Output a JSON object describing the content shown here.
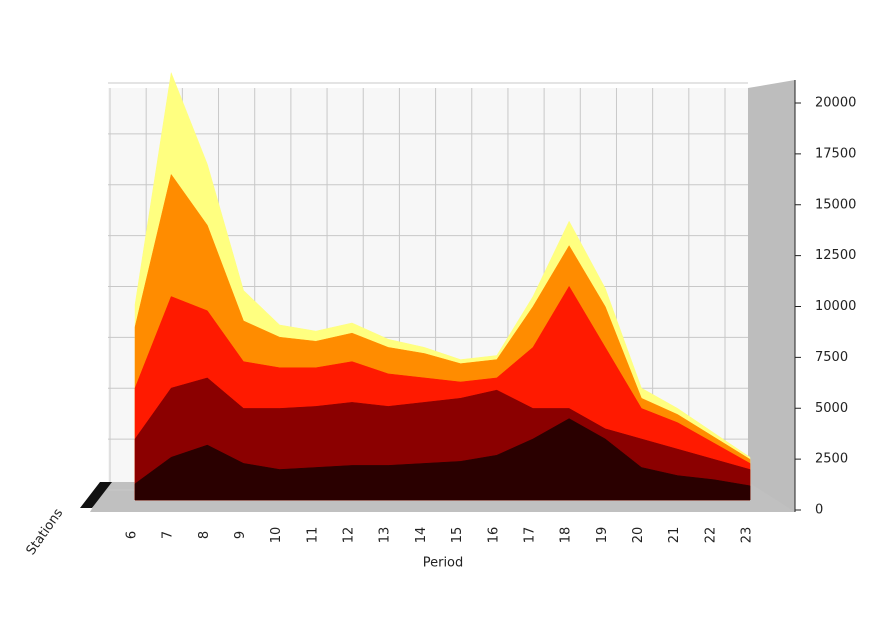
{
  "chart_data": {
    "type": "surface",
    "x_label": "Period",
    "y_label": "Stations",
    "categories": [
      "6",
      "7",
      "8",
      "9",
      "10",
      "11",
      "12",
      "13",
      "14",
      "15",
      "16",
      "17",
      "18",
      "19",
      "20",
      "21",
      "22",
      "23"
    ],
    "series": [
      {
        "color": "#ffff80",
        "values": [
          9600,
          21000,
          16500,
          10300,
          8600,
          8300,
          8700,
          7900,
          7500,
          6900,
          7100,
          10000,
          13700,
          10400,
          5500,
          4500,
          3300,
          2100
        ]
      },
      {
        "color": "#ff8c00",
        "values": [
          8500,
          16000,
          13500,
          8800,
          8000,
          7800,
          8200,
          7500,
          7200,
          6700,
          6900,
          9500,
          12500,
          9500,
          5000,
          4200,
          3100,
          2000
        ]
      },
      {
        "color": "#ff1a00",
        "values": [
          5500,
          10000,
          9300,
          6800,
          6500,
          6500,
          6800,
          6200,
          6000,
          5800,
          6000,
          7500,
          10500,
          7500,
          4500,
          3800,
          2800,
          1800
        ]
      },
      {
        "color": "#8b0000",
        "values": [
          3000,
          5500,
          6000,
          4500,
          4500,
          4600,
          4800,
          4600,
          4800,
          5000,
          5400,
          4500,
          4500,
          3500,
          3000,
          2500,
          2000,
          1500
        ]
      },
      {
        "color": "#2a0000",
        "values": [
          800,
          2100,
          2700,
          1800,
          1500,
          1600,
          1700,
          1700,
          1800,
          1900,
          2200,
          3000,
          4000,
          3000,
          1600,
          1200,
          1000,
          700
        ]
      }
    ],
    "zlim": [
      0,
      20000
    ],
    "zticks": [
      0,
      2500,
      5000,
      7500,
      10000,
      12500,
      15000,
      17500,
      20000
    ],
    "grid": true
  }
}
